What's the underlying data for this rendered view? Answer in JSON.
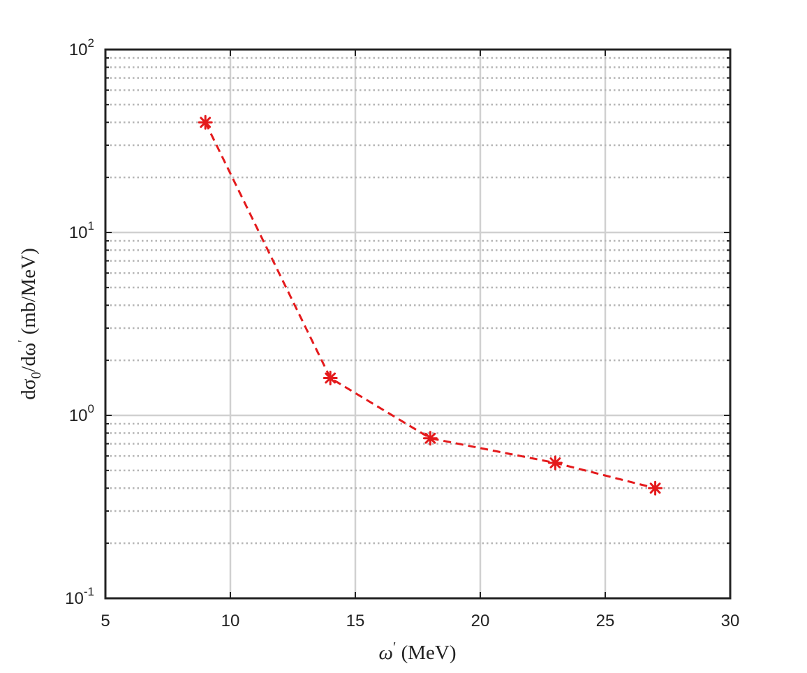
{
  "chart_data": {
    "type": "line",
    "title": "",
    "xlabel_parts": {
      "symbol": "ω",
      "prime": "′",
      "unit": " (MeV)"
    },
    "ylabel_parts": {
      "d1": "dσ",
      "sub": "0",
      "d2": "/dω",
      "prime": "′",
      "unit": " (mb/MeV)"
    },
    "xlim": [
      5,
      30
    ],
    "ylim": [
      0.1,
      100
    ],
    "yscale": "log",
    "grid": true,
    "x_ticks": [
      "5",
      "10",
      "15",
      "20",
      "25",
      "30"
    ],
    "y_ticks": [
      {
        "base": "10",
        "exp": "-1"
      },
      {
        "base": "10",
        "exp": "0"
      },
      {
        "base": "10",
        "exp": "1"
      },
      {
        "base": "10",
        "exp": "2"
      }
    ],
    "series": [
      {
        "x": [
          9,
          14,
          18,
          23,
          27
        ],
        "y": [
          40,
          1.6,
          0.75,
          0.55,
          0.4
        ],
        "color": "#e41a1c",
        "line_style": "dashed",
        "marker": "asterisk"
      }
    ]
  }
}
